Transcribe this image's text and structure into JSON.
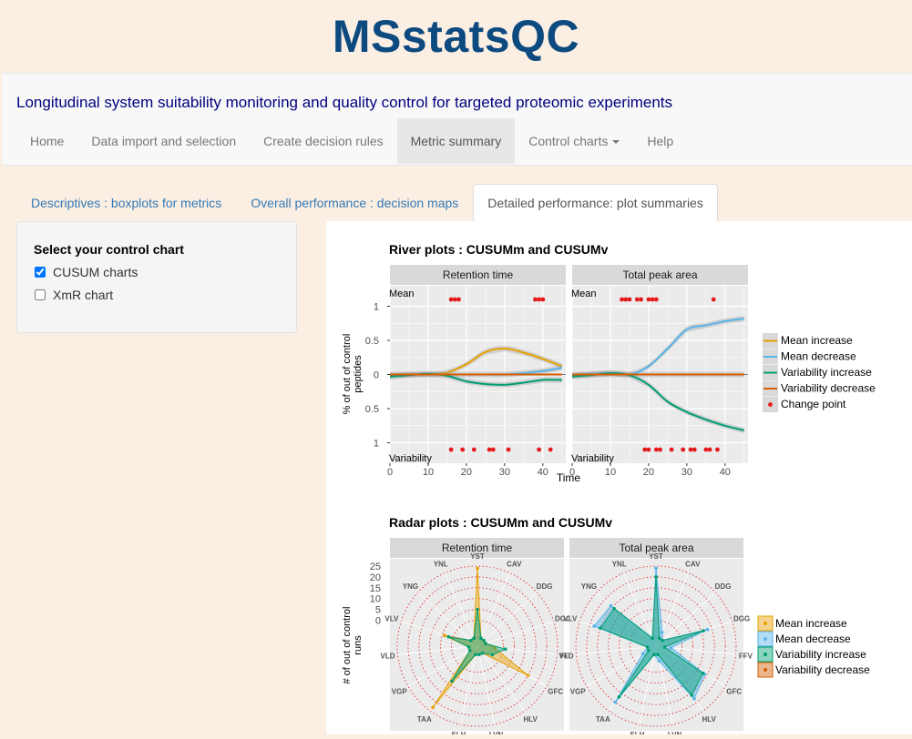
{
  "app_title": "MSstatsQC",
  "subtitle": "Longitudinal system suitability monitoring and quality control for targeted proteomic experiments",
  "nav": {
    "tabs": [
      "Home",
      "Data import and selection",
      "Create decision rules",
      "Metric summary",
      "Control charts",
      "Help"
    ],
    "active": "Metric summary"
  },
  "subtabs": {
    "tabs": [
      "Descriptives : boxplots for metrics",
      "Overall performance : decision maps",
      "Detailed performance: plot summaries"
    ],
    "active": "Detailed performance: plot summaries"
  },
  "sidebar": {
    "title": "Select your control chart",
    "options": [
      {
        "label": "CUSUM charts",
        "checked": true
      },
      {
        "label": "XmR chart",
        "checked": false
      }
    ]
  },
  "colors": {
    "mean_increase": "#e69f00",
    "mean_decrease": "#56b4e9",
    "variability_increase": "#009e73",
    "variability_decrease": "#d55e00",
    "change_point": "#e41a1c"
  },
  "chart_data": [
    {
      "type": "line",
      "title": "River plots : CUSUMm and CUSUMv",
      "xlabel": "Time",
      "ylabel": "% of out of control peptides",
      "xlim": [
        0,
        46
      ],
      "ylim": [
        -1.3,
        1.3
      ],
      "x_ticks": [
        0,
        10,
        20,
        30,
        40
      ],
      "y_ticks": [
        {
          "v": 1,
          "l": "1"
        },
        {
          "v": 0.5,
          "l": "0.5"
        },
        {
          "v": 0,
          "l": "0"
        },
        {
          "v": -0.5,
          "l": "0.5"
        },
        {
          "v": -1,
          "l": "1"
        }
      ],
      "top_label": "Mean",
      "bottom_label": "Variability",
      "legend": [
        "Mean increase",
        "Mean decrease",
        "Variability increase",
        "Variability decrease",
        "Change point"
      ],
      "facets": [
        {
          "name": "Retention time",
          "series": [
            {
              "name": "Mean increase",
              "x": [
                0,
                5,
                10,
                15,
                20,
                25,
                30,
                35,
                40,
                45
              ],
              "y": [
                -0.02,
                0.0,
                0.0,
                0.03,
                0.15,
                0.33,
                0.38,
                0.32,
                0.23,
                0.12
              ]
            },
            {
              "name": "Mean decrease",
              "x": [
                0,
                5,
                10,
                15,
                20,
                25,
                30,
                35,
                40,
                45
              ],
              "y": [
                0,
                0,
                0,
                0,
                0,
                0,
                0,
                0.02,
                0.05,
                0.1
              ]
            },
            {
              "name": "Variability increase",
              "x": [
                0,
                5,
                10,
                15,
                20,
                25,
                30,
                35,
                40,
                45
              ],
              "y": [
                -0.03,
                -0.01,
                0.01,
                -0.02,
                -0.1,
                -0.14,
                -0.15,
                -0.12,
                -0.08,
                -0.08
              ]
            },
            {
              "name": "Variability decrease",
              "x": [
                0,
                45
              ],
              "y": [
                0,
                0
              ]
            }
          ],
          "change_points_top": [
            16,
            17,
            18,
            38,
            39,
            40
          ],
          "change_points_bottom": [
            16,
            19,
            22,
            26,
            27,
            31,
            39,
            42
          ]
        },
        {
          "name": "Total peak area",
          "series": [
            {
              "name": "Mean increase",
              "x": [
                0,
                5,
                10,
                15,
                20,
                25,
                30,
                35,
                40,
                45
              ],
              "y": [
                0,
                0,
                0,
                0,
                0,
                0,
                0,
                0,
                0,
                0
              ]
            },
            {
              "name": "Mean decrease",
              "x": [
                0,
                5,
                10,
                15,
                20,
                25,
                30,
                35,
                40,
                45
              ],
              "y": [
                -0.02,
                0.01,
                0.02,
                0.0,
                0.12,
                0.38,
                0.66,
                0.72,
                0.78,
                0.82
              ]
            },
            {
              "name": "Variability increase",
              "x": [
                0,
                5,
                10,
                15,
                20,
                25,
                30,
                35,
                40,
                45
              ],
              "y": [
                -0.03,
                -0.01,
                0.02,
                -0.01,
                -0.15,
                -0.4,
                -0.55,
                -0.66,
                -0.75,
                -0.82
              ]
            },
            {
              "name": "Variability decrease",
              "x": [
                0,
                45
              ],
              "y": [
                0,
                0
              ]
            }
          ],
          "change_points_top": [
            13,
            14,
            15,
            17,
            18,
            20,
            21,
            22,
            37
          ],
          "change_points_bottom": [
            19,
            20,
            22,
            23,
            26,
            29,
            31,
            32,
            35,
            36,
            38
          ]
        }
      ]
    },
    {
      "type": "radar",
      "title": "Radar plots : CUSUMm and CUSUMv",
      "ylabel": "# of out of control runs",
      "r_ticks": [
        0,
        5,
        10,
        15,
        20,
        25
      ],
      "r_tick_labels": [
        "0",
        "5",
        "10",
        "15",
        "20",
        "25"
      ],
      "rlim": [
        -12,
        25
      ],
      "peptides": [
        "YST",
        "CAV",
        "DDG",
        "DGG",
        "FFV",
        "GFC",
        "HLV",
        "LVN",
        "SLH",
        "TAA",
        "VGP",
        "VLD",
        "VLV",
        "YNG",
        "YNL"
      ],
      "legend": [
        "Mean increase",
        "Mean decrease",
        "Variability increase",
        "Variability decrease"
      ],
      "facets": [
        {
          "name": "Retention time",
          "series": [
            {
              "name": "Mean increase",
              "values": [
                24,
                -8,
                -8,
                -8,
                -4,
                15,
                -8,
                -8,
                -8,
                23,
                -8,
                -8,
                4,
                -8,
                -8
              ]
            },
            {
              "name": "Mean decrease",
              "values": [
                -12,
                -12,
                -12,
                -12,
                -12,
                -12,
                -12,
                -12,
                -12,
                -12,
                -12,
                -12,
                -12,
                -12,
                -12
              ]
            },
            {
              "name": "Variability increase",
              "values": [
                5,
                -8,
                -8,
                -8,
                1,
                -4,
                -8,
                -8,
                -8,
                8,
                -8,
                -8,
                2,
                -8,
                -8
              ]
            },
            {
              "name": "Variability decrease",
              "values": [
                -12,
                -12,
                -12,
                -12,
                -12,
                -12,
                -12,
                -12,
                -12,
                -12,
                -12,
                -12,
                -12,
                -12,
                -12
              ]
            }
          ]
        },
        {
          "name": "Total peak area",
          "series": [
            {
              "name": "Mean increase",
              "values": [
                -12,
                -12,
                -12,
                -12,
                -12,
                -12,
                -12,
                -12,
                -12,
                -12,
                -12,
                -12,
                -12,
                -12,
                -12
              ]
            },
            {
              "name": "Mean decrease",
              "values": [
                24,
                -5,
                -8,
                13,
                -5,
                14,
                18,
                -5,
                -8,
                20,
                -5,
                -8,
                18,
                16,
                -8
              ]
            },
            {
              "name": "Variability increase",
              "values": [
                20,
                -8,
                -8,
                11,
                -8,
                13,
                16,
                -8,
                -8,
                17,
                -8,
                -8,
                15,
                14,
                -8
              ]
            },
            {
              "name": "Variability decrease",
              "values": [
                -12,
                -12,
                -12,
                -12,
                -12,
                -12,
                -12,
                -12,
                -12,
                -12,
                -12,
                -12,
                -12,
                -12,
                -12
              ]
            }
          ]
        }
      ]
    }
  ]
}
